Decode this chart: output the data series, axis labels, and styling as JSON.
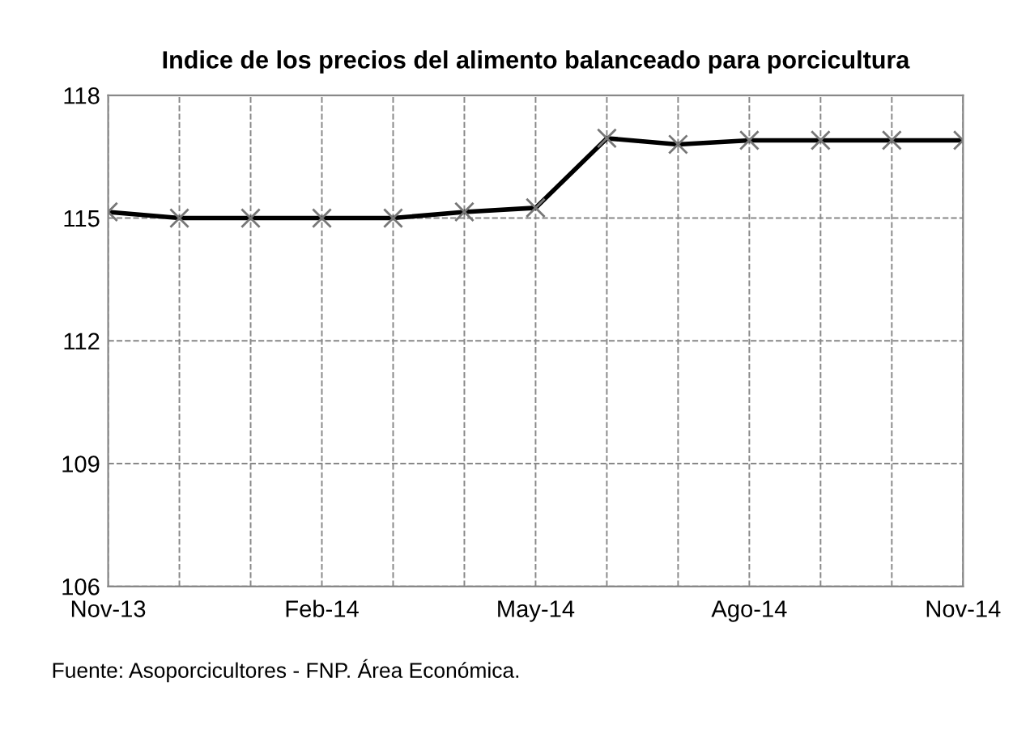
{
  "chart_data": {
    "type": "line",
    "title": "Indice de los precios del alimento balanceado para porcicultura",
    "categories": [
      "Nov-13",
      null,
      null,
      "Feb-14",
      null,
      null,
      "May-14",
      null,
      null,
      "Ago-14",
      null,
      null,
      "Nov-14"
    ],
    "series": [
      {
        "color": "#000000",
        "values": [
          115.15,
          115.0,
          115.0,
          115.0,
          115.0,
          115.15,
          115.25,
          116.95,
          116.8,
          116.9,
          116.9,
          116.9,
          116.9
        ]
      }
    ],
    "ylim": [
      106,
      118
    ],
    "yticks": [
      106,
      109,
      112,
      115,
      118
    ],
    "grid": true,
    "marker": "cross",
    "line_style": "solid",
    "annotations": [
      "Fuente: Asoporcicultores - FNP. Área Económica."
    ]
  }
}
